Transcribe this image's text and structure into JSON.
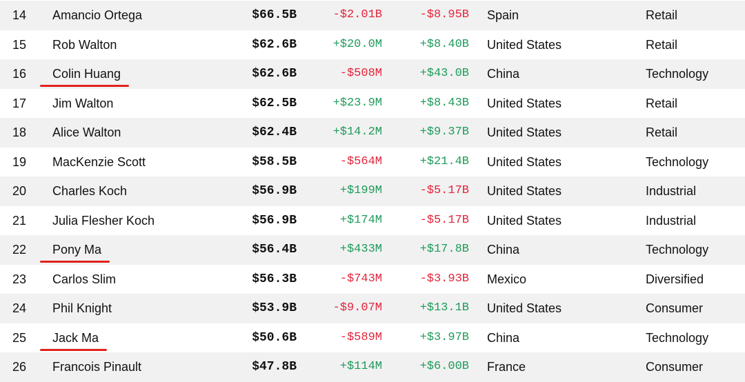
{
  "colors": {
    "negative": "#e3243b",
    "positive": "#1f9a5b",
    "highlight_underline": "#e0221b",
    "row_stripe": "#f1f1f1"
  },
  "rows": [
    {
      "rank": "14",
      "name": "Amancio Ortega",
      "net_worth": "$66.5B",
      "last_change": "-$2.01B",
      "last_dir": "neg",
      "ytd_change": "-$8.95B",
      "ytd_dir": "neg",
      "country": "Spain",
      "industry": "Retail",
      "highlighted": false
    },
    {
      "rank": "15",
      "name": "Rob Walton",
      "net_worth": "$62.6B",
      "last_change": "+$20.0M",
      "last_dir": "pos",
      "ytd_change": "+$8.40B",
      "ytd_dir": "pos",
      "country": "United States",
      "industry": "Retail",
      "highlighted": false
    },
    {
      "rank": "16",
      "name": "Colin Huang",
      "net_worth": "$62.6B",
      "last_change": "-$508M",
      "last_dir": "neg",
      "ytd_change": "+$43.0B",
      "ytd_dir": "pos",
      "country": "China",
      "industry": "Technology",
      "highlighted": true
    },
    {
      "rank": "17",
      "name": "Jim Walton",
      "net_worth": "$62.5B",
      "last_change": "+$23.9M",
      "last_dir": "pos",
      "ytd_change": "+$8.43B",
      "ytd_dir": "pos",
      "country": "United States",
      "industry": "Retail",
      "highlighted": false
    },
    {
      "rank": "18",
      "name": "Alice Walton",
      "net_worth": "$62.4B",
      "last_change": "+$14.2M",
      "last_dir": "pos",
      "ytd_change": "+$9.37B",
      "ytd_dir": "pos",
      "country": "United States",
      "industry": "Retail",
      "highlighted": false
    },
    {
      "rank": "19",
      "name": "MacKenzie Scott",
      "net_worth": "$58.5B",
      "last_change": "-$564M",
      "last_dir": "neg",
      "ytd_change": "+$21.4B",
      "ytd_dir": "pos",
      "country": "United States",
      "industry": "Technology",
      "highlighted": false
    },
    {
      "rank": "20",
      "name": "Charles Koch",
      "net_worth": "$56.9B",
      "last_change": "+$199M",
      "last_dir": "pos",
      "ytd_change": "-$5.17B",
      "ytd_dir": "neg",
      "country": "United States",
      "industry": "Industrial",
      "highlighted": false
    },
    {
      "rank": "21",
      "name": "Julia Flesher Koch",
      "net_worth": "$56.9B",
      "last_change": "+$174M",
      "last_dir": "pos",
      "ytd_change": "-$5.17B",
      "ytd_dir": "neg",
      "country": "United States",
      "industry": "Industrial",
      "highlighted": false
    },
    {
      "rank": "22",
      "name": "Pony Ma",
      "net_worth": "$56.4B",
      "last_change": "+$433M",
      "last_dir": "pos",
      "ytd_change": "+$17.8B",
      "ytd_dir": "pos",
      "country": "China",
      "industry": "Technology",
      "highlighted": true
    },
    {
      "rank": "23",
      "name": "Carlos Slim",
      "net_worth": "$56.3B",
      "last_change": "-$743M",
      "last_dir": "neg",
      "ytd_change": "-$3.93B",
      "ytd_dir": "neg",
      "country": "Mexico",
      "industry": "Diversified",
      "highlighted": false
    },
    {
      "rank": "24",
      "name": "Phil Knight",
      "net_worth": "$53.9B",
      "last_change": "-$9.07M",
      "last_dir": "neg",
      "ytd_change": "+$13.1B",
      "ytd_dir": "pos",
      "country": "United States",
      "industry": "Consumer",
      "highlighted": false
    },
    {
      "rank": "25",
      "name": "Jack Ma",
      "net_worth": "$50.6B",
      "last_change": "-$589M",
      "last_dir": "neg",
      "ytd_change": "+$3.97B",
      "ytd_dir": "pos",
      "country": "China",
      "industry": "Technology",
      "highlighted": true
    },
    {
      "rank": "26",
      "name": "Francois Pinault",
      "net_worth": "$47.8B",
      "last_change": "+$114M",
      "last_dir": "pos",
      "ytd_change": "+$6.00B",
      "ytd_dir": "pos",
      "country": "France",
      "industry": "Consumer",
      "highlighted": false
    }
  ]
}
